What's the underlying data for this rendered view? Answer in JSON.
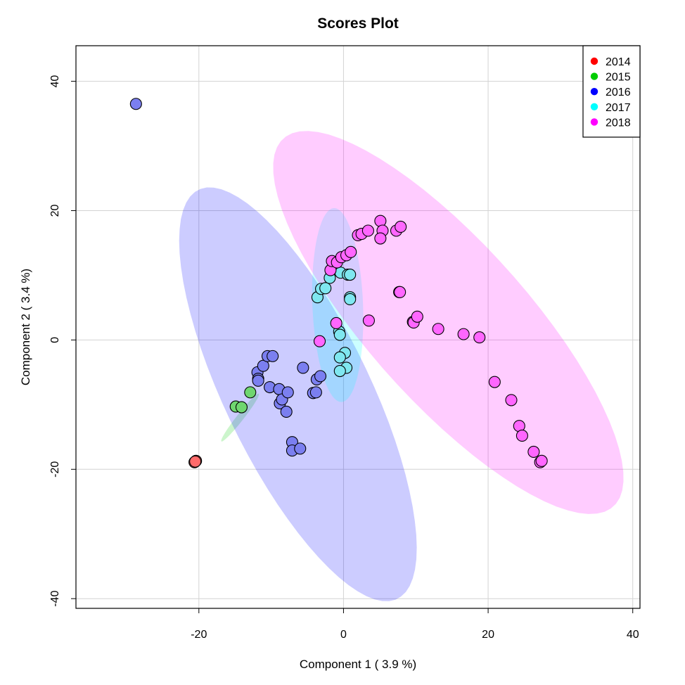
{
  "chart_data": {
    "type": "scatter",
    "title": "Scores Plot",
    "xlabel": "Component 1 ( 3.9 %)",
    "ylabel": "Component 2 ( 3.4 %)",
    "xlim": [
      -37,
      41
    ],
    "ylim": [
      -41.5,
      45.5
    ],
    "xticks": [
      -20,
      0,
      20,
      40
    ],
    "yticks": [
      -40,
      -20,
      0,
      20,
      40
    ],
    "xtick_labels": [
      "-20",
      "0",
      "20",
      "40"
    ],
    "ytick_labels": [
      "-40",
      "-20",
      "0",
      "20",
      "40"
    ],
    "grid": true,
    "legend_position": "top-right",
    "series": [
      {
        "name": "2014",
        "color": "#ff0000",
        "point_color": "#ff6b6b",
        "points": [
          [
            -20.4,
            -18.7
          ],
          [
            -20.6,
            -18.9
          ],
          [
            -20.5,
            -18.8
          ]
        ],
        "ellipse": null
      },
      {
        "name": "2015",
        "color": "#00cd00",
        "point_color": "#6fd66f",
        "points": [
          [
            -14.9,
            -10.3
          ],
          [
            -14.1,
            -10.4
          ],
          [
            -12.9,
            -8.1
          ]
        ],
        "ellipse": {
          "cx": -14.3,
          "cy": -12.0,
          "rx": 4.5,
          "ry": 0.5,
          "angle_deg": 55
        }
      },
      {
        "name": "2016",
        "color": "#0000ff",
        "point_color": "#7b7ff0",
        "points": [
          [
            -28.7,
            36.5
          ],
          [
            -11.9,
            -5.0
          ],
          [
            -11.8,
            -6.0
          ],
          [
            -11.8,
            -6.3
          ],
          [
            -11.1,
            -4.0
          ],
          [
            -10.5,
            -2.5
          ],
          [
            -9.8,
            -2.5
          ],
          [
            -10.2,
            -7.3
          ],
          [
            -8.9,
            -7.6
          ],
          [
            -8.8,
            -9.8
          ],
          [
            -8.5,
            -9.2
          ],
          [
            -7.9,
            -11.1
          ],
          [
            -7.7,
            -8.1
          ],
          [
            -5.6,
            -4.3
          ],
          [
            -7.1,
            -15.8
          ],
          [
            -7.1,
            -17.1
          ],
          [
            -6.0,
            -16.8
          ],
          [
            -4.2,
            -8.2
          ],
          [
            -3.8,
            -8.1
          ],
          [
            -3.7,
            -6.1
          ],
          [
            -3.2,
            -5.6
          ]
        ],
        "ellipse": {
          "cx": -6.3,
          "cy": -8.4,
          "rx": 34.5,
          "ry": 10.2,
          "angle_deg": -67
        }
      },
      {
        "name": "2017",
        "color": "#00ffff",
        "point_color": "#7fe7f0",
        "points": [
          [
            -3.6,
            6.6
          ],
          [
            -3.1,
            7.9
          ],
          [
            -2.5,
            8.0
          ],
          [
            -1.9,
            9.6
          ],
          [
            -0.4,
            10.4
          ],
          [
            0.6,
            10.1
          ],
          [
            0.9,
            10.1
          ],
          [
            0.9,
            6.6
          ],
          [
            0.9,
            6.3
          ],
          [
            -0.6,
            1.3
          ],
          [
            -0.5,
            0.8
          ],
          [
            0.2,
            -2.0
          ],
          [
            -0.5,
            -2.7
          ],
          [
            0.4,
            -4.3
          ],
          [
            -0.5,
            -4.8
          ]
        ],
        "ellipse": {
          "cx": -0.8,
          "cy": 5.4,
          "rx": 15.0,
          "ry": 3.5,
          "angle_deg": -88
        }
      },
      {
        "name": "2018",
        "color": "#ff00ff",
        "point_color": "#ff66ff",
        "points": [
          [
            -1.8,
            10.8
          ],
          [
            -1.6,
            12.2
          ],
          [
            -0.9,
            12.0
          ],
          [
            -0.3,
            12.8
          ],
          [
            0.4,
            13.1
          ],
          [
            1.0,
            13.6
          ],
          [
            2.0,
            16.2
          ],
          [
            2.5,
            16.4
          ],
          [
            3.4,
            16.9
          ],
          [
            5.1,
            18.4
          ],
          [
            5.4,
            16.9
          ],
          [
            5.1,
            15.7
          ],
          [
            7.3,
            16.9
          ],
          [
            7.9,
            17.5
          ],
          [
            7.7,
            7.4
          ],
          [
            7.8,
            7.4
          ],
          [
            -1.0,
            2.6
          ],
          [
            -3.3,
            -0.2
          ],
          [
            3.5,
            3.0
          ],
          [
            9.6,
            2.8
          ],
          [
            9.7,
            2.7
          ],
          [
            10.2,
            3.6
          ],
          [
            13.1,
            1.7
          ],
          [
            16.6,
            0.9
          ],
          [
            18.8,
            0.4
          ],
          [
            20.9,
            -6.5
          ],
          [
            23.2,
            -9.3
          ],
          [
            24.3,
            -13.3
          ],
          [
            24.7,
            -14.8
          ],
          [
            26.3,
            -17.3
          ],
          [
            27.2,
            -18.9
          ],
          [
            27.4,
            -18.7
          ]
        ],
        "ellipse": {
          "cx": 14.5,
          "cy": 2.7,
          "rx": 36.5,
          "ry": 11.5,
          "angle_deg": -52
        }
      }
    ]
  }
}
